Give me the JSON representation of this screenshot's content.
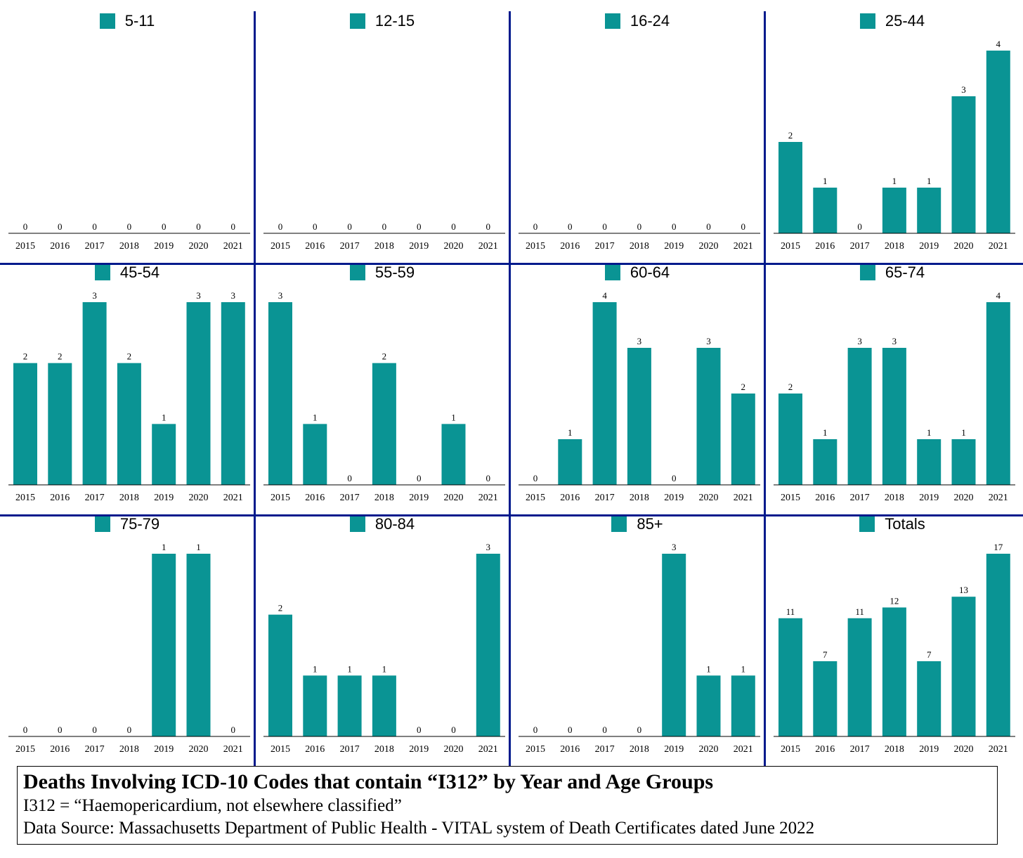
{
  "chart_data": [
    {
      "type": "bar",
      "series": [
        {
          "name": "5-11",
          "values": [
            0,
            0,
            0,
            0,
            0,
            0,
            0
          ]
        }
      ],
      "categories": [
        "2015",
        "2016",
        "2017",
        "2018",
        "2019",
        "2020",
        "2021"
      ],
      "ylim": [
        0,
        4
      ]
    },
    {
      "type": "bar",
      "series": [
        {
          "name": "12-15",
          "values": [
            0,
            0,
            0,
            0,
            0,
            0,
            0
          ]
        }
      ],
      "categories": [
        "2015",
        "2016",
        "2017",
        "2018",
        "2019",
        "2020",
        "2021"
      ],
      "ylim": [
        0,
        4
      ]
    },
    {
      "type": "bar",
      "series": [
        {
          "name": "16-24",
          "values": [
            0,
            0,
            0,
            0,
            0,
            0,
            0
          ]
        }
      ],
      "categories": [
        "2015",
        "2016",
        "2017",
        "2018",
        "2019",
        "2020",
        "2021"
      ],
      "ylim": [
        0,
        4
      ]
    },
    {
      "type": "bar",
      "series": [
        {
          "name": "25-44",
          "values": [
            2,
            1,
            0,
            1,
            1,
            3,
            4
          ]
        }
      ],
      "categories": [
        "2015",
        "2016",
        "2017",
        "2018",
        "2019",
        "2020",
        "2021"
      ],
      "ylim": [
        0,
        4
      ]
    },
    {
      "type": "bar",
      "series": [
        {
          "name": "45-54",
          "values": [
            2,
            2,
            3,
            2,
            1,
            3,
            3
          ]
        }
      ],
      "categories": [
        "2015",
        "2016",
        "2017",
        "2018",
        "2019",
        "2020",
        "2021"
      ],
      "ylim": [
        0,
        3
      ]
    },
    {
      "type": "bar",
      "series": [
        {
          "name": "55-59",
          "values": [
            3,
            1,
            0,
            2,
            0,
            1,
            0
          ]
        }
      ],
      "categories": [
        "2015",
        "2016",
        "2017",
        "2018",
        "2019",
        "2020",
        "2021"
      ],
      "ylim": [
        0,
        3
      ]
    },
    {
      "type": "bar",
      "series": [
        {
          "name": "60-64",
          "values": [
            0,
            1,
            4,
            3,
            0,
            3,
            2
          ]
        }
      ],
      "categories": [
        "2015",
        "2016",
        "2017",
        "2018",
        "2019",
        "2020",
        "2021"
      ],
      "ylim": [
        0,
        4
      ]
    },
    {
      "type": "bar",
      "series": [
        {
          "name": "65-74",
          "values": [
            2,
            1,
            3,
            3,
            1,
            1,
            4
          ]
        }
      ],
      "categories": [
        "2015",
        "2016",
        "2017",
        "2018",
        "2019",
        "2020",
        "2021"
      ],
      "ylim": [
        0,
        4
      ]
    },
    {
      "type": "bar",
      "series": [
        {
          "name": "75-79",
          "values": [
            0,
            0,
            0,
            0,
            1,
            1,
            0
          ]
        }
      ],
      "categories": [
        "2015",
        "2016",
        "2017",
        "2018",
        "2019",
        "2020",
        "2021"
      ],
      "ylim": [
        0,
        1
      ]
    },
    {
      "type": "bar",
      "series": [
        {
          "name": "80-84",
          "values": [
            2,
            1,
            1,
            1,
            0,
            0,
            3
          ]
        }
      ],
      "categories": [
        "2015",
        "2016",
        "2017",
        "2018",
        "2019",
        "2020",
        "2021"
      ],
      "ylim": [
        0,
        3
      ]
    },
    {
      "type": "bar",
      "series": [
        {
          "name": "85+",
          "values": [
            0,
            0,
            0,
            0,
            3,
            1,
            1
          ]
        }
      ],
      "categories": [
        "2015",
        "2016",
        "2017",
        "2018",
        "2019",
        "2020",
        "2021"
      ],
      "ylim": [
        0,
        3
      ]
    },
    {
      "type": "bar",
      "series": [
        {
          "name": "Totals",
          "values": [
            11,
            7,
            11,
            12,
            7,
            13,
            17
          ]
        }
      ],
      "categories": [
        "2015",
        "2016",
        "2017",
        "2018",
        "2019",
        "2020",
        "2021"
      ],
      "ylim": [
        0,
        17
      ]
    }
  ],
  "colors": {
    "bar": "#0a9494",
    "divider": "#001a8c",
    "axis": "#000000"
  },
  "caption": {
    "title": "Deaths Involving ICD-10 Codes that contain “I312” by Year and Age Groups",
    "definition": "I312 = “Haemopericardium, not elsewhere classified”",
    "source": "Data Source:  Massachusetts Department of Public Health - VITAL system of Death Certificates dated June 2022"
  }
}
